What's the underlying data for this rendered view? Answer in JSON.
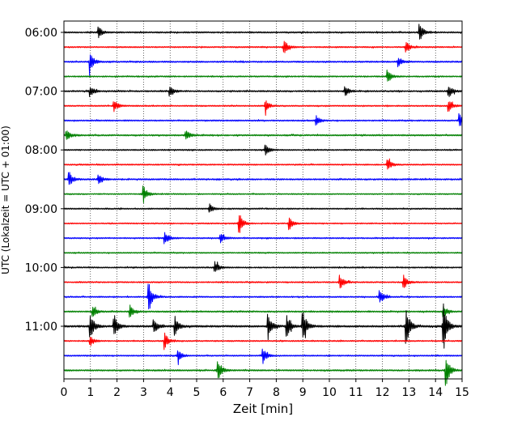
{
  "chart_data": {
    "type": "line",
    "title": "",
    "xlabel": "Zeit  [min]",
    "ylabel": "UTC (Lokalzeit = UTC + 01:00)",
    "xlim": [
      0,
      15
    ],
    "x_ticks": [
      0,
      1,
      2,
      3,
      4,
      5,
      6,
      7,
      8,
      9,
      10,
      11,
      12,
      13,
      14,
      15
    ],
    "y_ticks": [
      "06:00",
      "07:00",
      "08:00",
      "09:00",
      "10:00",
      "11:00"
    ],
    "grid": "vertical dotted at each minute",
    "trace_interval_min": 15,
    "trace_colors": [
      "#000000",
      "#ff0000",
      "#0000ff",
      "#008000"
    ],
    "series": [
      {
        "start": "06:00",
        "color": "#000000",
        "baseline": 0.55,
        "events": [
          {
            "t": 1.3,
            "amp": 0.45
          },
          {
            "t": 13.4,
            "amp": 0.8
          }
        ]
      },
      {
        "start": "06:15",
        "color": "#ff0000",
        "baseline": 0.5,
        "events": [
          {
            "t": 8.3,
            "amp": 0.6
          },
          {
            "t": 12.9,
            "amp": 0.5
          }
        ]
      },
      {
        "start": "06:30",
        "color": "#0000ff",
        "baseline": 0.55,
        "events": [
          {
            "t": 1.0,
            "amp": 0.7
          },
          {
            "t": 12.6,
            "amp": 0.45
          }
        ]
      },
      {
        "start": "06:45",
        "color": "#008000",
        "baseline": 0.5,
        "events": [
          {
            "t": 12.2,
            "amp": 0.5
          }
        ]
      },
      {
        "start": "07:00",
        "color": "#000000",
        "baseline": 0.55,
        "events": [
          {
            "t": 1.0,
            "amp": 0.45
          },
          {
            "t": 4.0,
            "amp": 0.5
          },
          {
            "t": 10.6,
            "amp": 0.45
          },
          {
            "t": 14.5,
            "amp": 0.55
          }
        ]
      },
      {
        "start": "07:15",
        "color": "#ff0000",
        "baseline": 0.5,
        "events": [
          {
            "t": 1.9,
            "amp": 0.45
          },
          {
            "t": 7.6,
            "amp": 0.5
          },
          {
            "t": 14.5,
            "amp": 0.5
          }
        ]
      },
      {
        "start": "07:30",
        "color": "#0000ff",
        "baseline": 0.5,
        "events": [
          {
            "t": 9.5,
            "amp": 0.4
          },
          {
            "t": 14.9,
            "amp": 0.6
          }
        ]
      },
      {
        "start": "07:45",
        "color": "#008000",
        "baseline": 0.55,
        "events": [
          {
            "t": 0.1,
            "amp": 0.5
          },
          {
            "t": 4.6,
            "amp": 0.45
          }
        ]
      },
      {
        "start": "08:00",
        "color": "#000000",
        "baseline": 0.5,
        "events": [
          {
            "t": 7.6,
            "amp": 0.45
          }
        ]
      },
      {
        "start": "08:15",
        "color": "#ff0000",
        "baseline": 0.5,
        "events": [
          {
            "t": 12.2,
            "amp": 0.45
          }
        ]
      },
      {
        "start": "08:30",
        "color": "#0000ff",
        "baseline": 0.55,
        "events": [
          {
            "t": 0.2,
            "amp": 0.65
          },
          {
            "t": 1.3,
            "amp": 0.45
          }
        ]
      },
      {
        "start": "08:45",
        "color": "#008000",
        "baseline": 0.45,
        "events": [
          {
            "t": 3.0,
            "amp": 0.7
          }
        ]
      },
      {
        "start": "09:00",
        "color": "#000000",
        "baseline": 0.5,
        "events": [
          {
            "t": 5.5,
            "amp": 0.4
          }
        ]
      },
      {
        "start": "09:15",
        "color": "#ff0000",
        "baseline": 0.45,
        "events": [
          {
            "t": 6.6,
            "amp": 0.95
          },
          {
            "t": 8.5,
            "amp": 0.5
          }
        ]
      },
      {
        "start": "09:30",
        "color": "#0000ff",
        "baseline": 0.5,
        "events": [
          {
            "t": 3.8,
            "amp": 0.6
          },
          {
            "t": 5.9,
            "amp": 0.4
          }
        ]
      },
      {
        "start": "09:45",
        "color": "#008000",
        "baseline": 0.45,
        "events": []
      },
      {
        "start": "10:00",
        "color": "#000000",
        "baseline": 0.5,
        "events": [
          {
            "t": 5.7,
            "amp": 0.5
          }
        ]
      },
      {
        "start": "10:15",
        "color": "#ff0000",
        "baseline": 0.5,
        "events": [
          {
            "t": 10.4,
            "amp": 0.65
          },
          {
            "t": 12.8,
            "amp": 0.6
          }
        ]
      },
      {
        "start": "10:30",
        "color": "#0000ff",
        "baseline": 0.5,
        "events": [
          {
            "t": 3.2,
            "amp": 1.3
          },
          {
            "t": 11.9,
            "amp": 0.65
          }
        ]
      },
      {
        "start": "10:45",
        "color": "#008000",
        "baseline": 0.55,
        "events": [
          {
            "t": 1.1,
            "amp": 0.5
          },
          {
            "t": 2.5,
            "amp": 0.5
          },
          {
            "t": 14.3,
            "amp": 0.5
          }
        ]
      },
      {
        "start": "11:00",
        "color": "#000000",
        "baseline": 0.7,
        "events": [
          {
            "t": 1.0,
            "amp": 1.1
          },
          {
            "t": 1.9,
            "amp": 1.0
          },
          {
            "t": 3.4,
            "amp": 0.7
          },
          {
            "t": 4.2,
            "amp": 0.8
          },
          {
            "t": 7.7,
            "amp": 1.1
          },
          {
            "t": 8.4,
            "amp": 0.9
          },
          {
            "t": 9.0,
            "amp": 1.5
          },
          {
            "t": 12.9,
            "amp": 1.6
          },
          {
            "t": 14.3,
            "amp": 2.2
          }
        ]
      },
      {
        "start": "11:15",
        "color": "#ff0000",
        "baseline": 0.5,
        "events": [
          {
            "t": 3.8,
            "amp": 0.7
          },
          {
            "t": 1.0,
            "amp": 0.4
          }
        ]
      },
      {
        "start": "11:30",
        "color": "#0000ff",
        "baseline": 0.5,
        "events": [
          {
            "t": 4.3,
            "amp": 0.6
          },
          {
            "t": 7.5,
            "amp": 0.7
          }
        ]
      },
      {
        "start": "11:45",
        "color": "#008000",
        "baseline": 0.55,
        "events": [
          {
            "t": 5.8,
            "amp": 1.0
          },
          {
            "t": 14.4,
            "amp": 1.3
          }
        ]
      }
    ]
  }
}
